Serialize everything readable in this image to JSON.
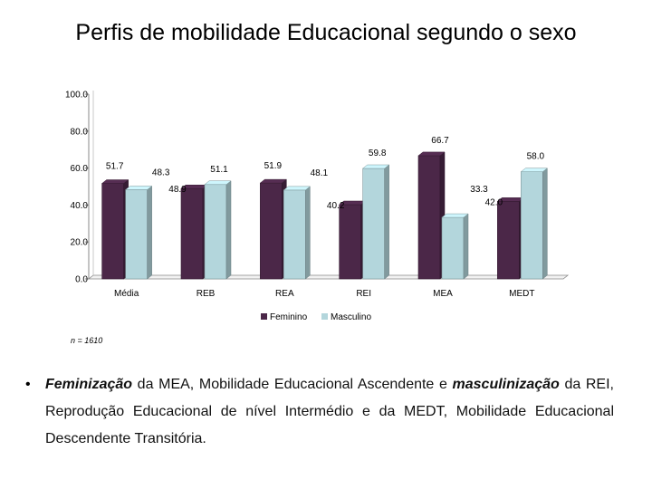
{
  "slide": {
    "title": "Perfis de mobilidade Educacional segundo o sexo",
    "note": "n = 1610",
    "bullet_symbol": "•",
    "text_parts": [
      {
        "text": "Feminização",
        "italic": true,
        "bold": true
      },
      {
        "text": " da MEA, Mobilidade Educacional Ascendente e ",
        "italic": false,
        "bold": false
      },
      {
        "text": "masculinização",
        "italic": true,
        "bold": true
      },
      {
        "text": " da REI, Reprodução Educacional de nível Intermédio e da MEDT, Mobilidade Educacional Descendente Transitória.",
        "italic": false,
        "bold": false
      }
    ]
  },
  "colors": {
    "feminino": "#4b2748",
    "masculino": "#b3d6dc"
  },
  "chart_data": {
    "type": "bar",
    "title": "",
    "xlabel": "",
    "ylabel": "",
    "categories": [
      "Média",
      "REB",
      "REA",
      "REI",
      "MEA",
      "MEDT"
    ],
    "series": [
      {
        "name": "Feminino",
        "values": [
          51.7,
          48.9,
          51.9,
          40.2,
          66.7,
          42.0
        ],
        "labels": [
          "51.7",
          "48.9",
          "51.9",
          "40.2",
          "66.7",
          "42.0"
        ]
      },
      {
        "name": "Masculino",
        "values": [
          48.3,
          51.1,
          48.1,
          59.8,
          33.3,
          58.0
        ],
        "labels": [
          "48.3",
          "51.1",
          "48.1",
          "59.8",
          "33.3",
          "58.0"
        ]
      }
    ],
    "ylim": [
      0,
      100
    ],
    "yticks": [
      "0.0",
      "20.0",
      "40.0",
      "60.0",
      "80.0",
      "100.0"
    ],
    "legend": "bottom",
    "grid": false,
    "style": "3d-bar"
  }
}
